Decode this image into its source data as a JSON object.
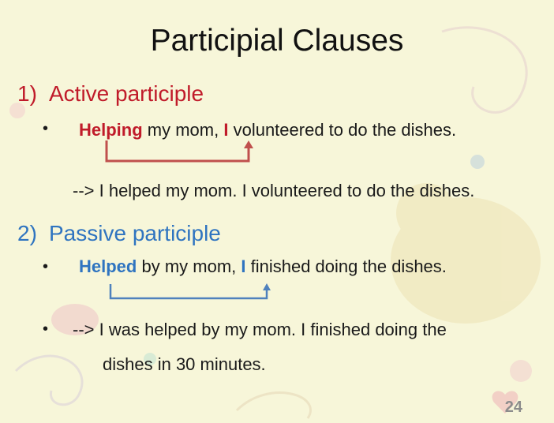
{
  "slide": {
    "title": "Participial Clauses",
    "section1": {
      "number": "1)",
      "heading": "Active participle",
      "bullet": "•",
      "example_keyword": "Helping",
      "example_mid": " my mom, ",
      "example_subject": "I",
      "example_rest": " volunteered to do the dishes.",
      "paraphrase": "--> I helped my mom. I volunteered to do the dishes."
    },
    "section2": {
      "number": "2)",
      "heading": "Passive participle",
      "bullet": "•",
      "example_keyword": "Helped",
      "example_mid": " by my mom, ",
      "example_subject": "I",
      "example_rest": " finished doing the dishes.",
      "bullet2": "•",
      "paraphrase_line1": "--> I was helped by my mom. I finished doing the",
      "paraphrase_line2": "dishes in 30 minutes."
    },
    "page_number": "24"
  },
  "colors": {
    "active": "#c01b2a",
    "passive": "#2f74c0",
    "active_bracket": "#c0504d",
    "passive_bracket": "#4f81bd"
  }
}
